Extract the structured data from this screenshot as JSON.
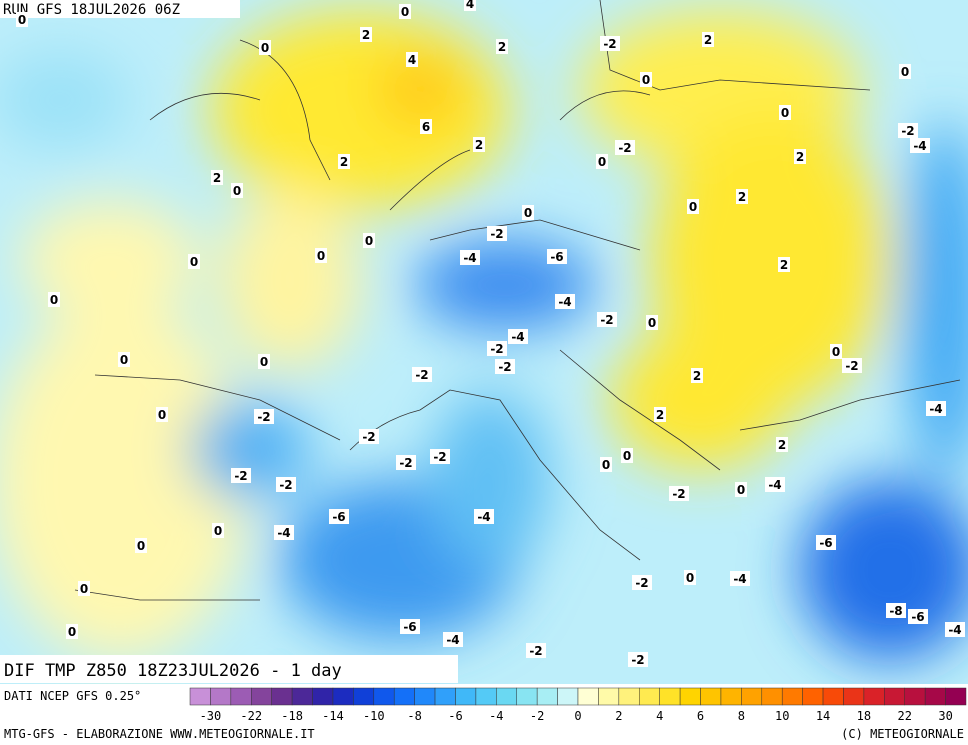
{
  "header": {
    "run": "RUN GFS 18JUL2026 06Z"
  },
  "map": {
    "title": "DIF TMP Z850 18Z23JUL2026 - 1 day",
    "contour_labels": [
      0,
      0,
      4,
      2,
      0,
      2,
      -2,
      2,
      4,
      0,
      0,
      6,
      0,
      -2,
      -4,
      2,
      -2,
      2,
      0,
      2,
      2,
      0,
      2,
      0,
      0,
      -2,
      0,
      0,
      0,
      -4,
      -6,
      2,
      0,
      -4,
      -2,
      0,
      -4,
      -2,
      0,
      0,
      0,
      -2,
      -2,
      -2,
      2,
      -4,
      -2,
      0,
      2,
      -2,
      -2,
      -2,
      0,
      2,
      0,
      -2,
      -2,
      -4,
      0,
      -2,
      -6,
      -4,
      -4,
      0,
      -6,
      0,
      -2,
      0,
      -4,
      0,
      -8,
      -6,
      -6,
      0,
      -4,
      -4,
      -2,
      -2
    ]
  },
  "colorbar": {
    "source": "DATI NCEP GFS 0.25°",
    "colors": [
      "#c890d8",
      "#b478c8",
      "#9c5cb4",
      "#84449c",
      "#6a3090",
      "#4c2898",
      "#3024a8",
      "#1c2cc0",
      "#1040d8",
      "#1058ec",
      "#1470f8",
      "#2088fa",
      "#30a0fa",
      "#40b8f8",
      "#54caf6",
      "#6ad8f2",
      "#88e4f2",
      "#a8eef4",
      "#cdf6f8",
      "#ffffd4",
      "#fffaa8",
      "#fff27c",
      "#ffea50",
      "#ffe228",
      "#ffd400",
      "#ffc400",
      "#ffb400",
      "#ffa200",
      "#ff9000",
      "#ff7a00",
      "#ff6200",
      "#f84a08",
      "#ea3418",
      "#da2228",
      "#c81834",
      "#b8103e",
      "#a60848",
      "#940052"
    ],
    "ticks": [
      -30,
      -22,
      -18,
      -14,
      -10,
      -8,
      -6,
      -4,
      -2,
      0,
      2,
      4,
      6,
      8,
      10,
      14,
      18,
      22,
      30
    ]
  },
  "footer": {
    "credit": "MTG-GFS - ELABORAZIONE WWW.METEOGIORNALE.IT",
    "copyright": "(C) METEOGIORNALE"
  }
}
